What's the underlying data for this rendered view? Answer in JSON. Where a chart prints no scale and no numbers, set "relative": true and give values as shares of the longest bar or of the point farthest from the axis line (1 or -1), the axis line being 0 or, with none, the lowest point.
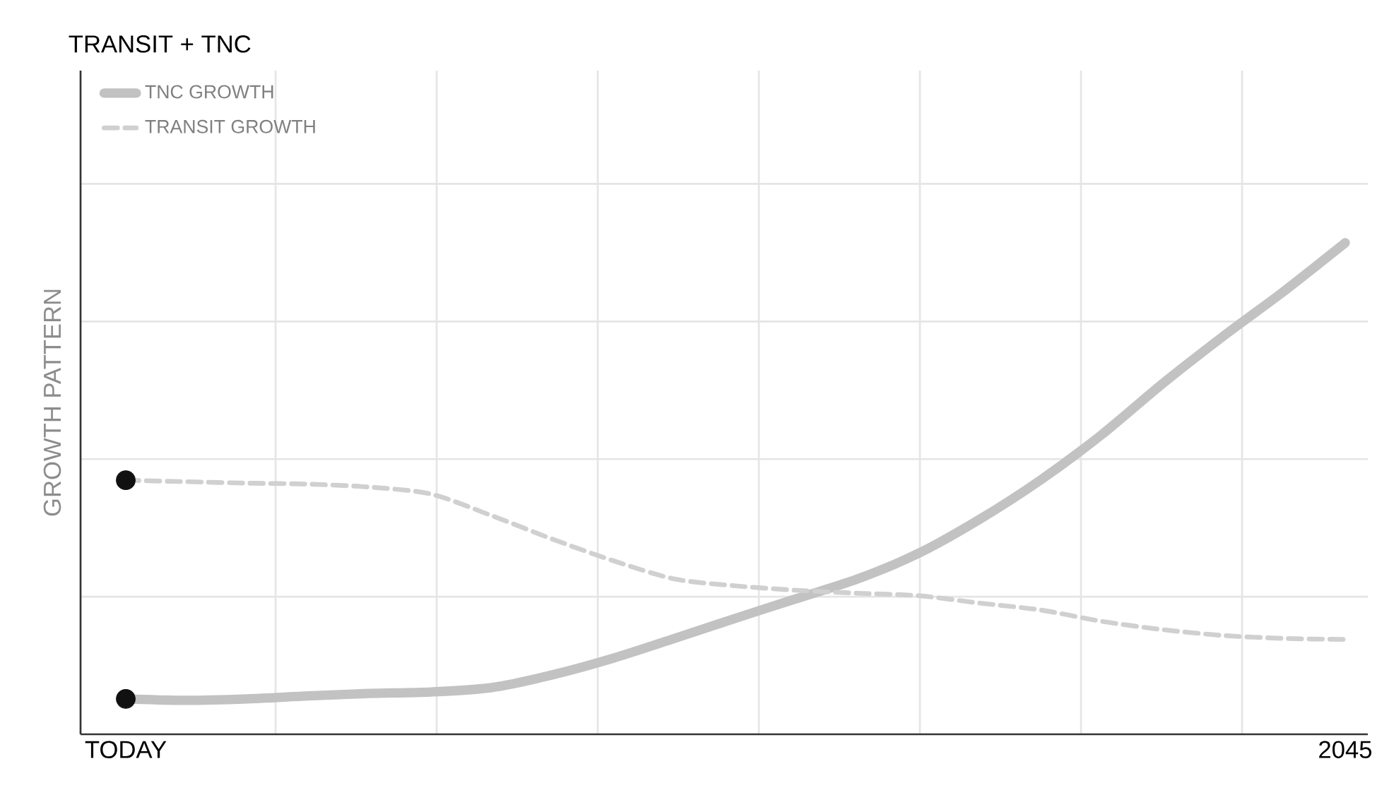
{
  "chart_data": {
    "type": "line",
    "title": "TRANSIT + TNC",
    "ylabel": "GROWTH PATTERN",
    "relative": true,
    "grid": true,
    "legend": "top left",
    "categories": [
      "TODAY",
      null,
      null,
      null,
      null,
      null,
      null,
      null,
      null,
      null,
      null,
      null,
      null,
      null,
      null,
      null,
      null,
      null,
      null,
      null,
      "2045"
    ],
    "series": [
      {
        "name": "TNC GROWTH",
        "line_style": "solid",
        "color": "#c2c2c2",
        "values": [
          0.072,
          0.069,
          0.072,
          0.078,
          0.083,
          0.086,
          0.095,
          0.121,
          0.155,
          0.195,
          0.236,
          0.276,
          0.316,
          0.368,
          0.437,
          0.517,
          0.609,
          0.713,
          0.81,
          0.902,
          1.0
        ]
      },
      {
        "name": "TRANSIT GROWTH",
        "line_style": "dashed",
        "color": "#d0d0d0",
        "values": [
          0.517,
          0.514,
          0.511,
          0.509,
          0.503,
          0.489,
          0.445,
          0.397,
          0.353,
          0.316,
          0.302,
          0.293,
          0.287,
          0.282,
          0.267,
          0.253,
          0.23,
          0.213,
          0.201,
          0.195,
          0.193
        ]
      },
      {
        "type": "scatter",
        "color": "#111111",
        "values": [
          0.072,
          null,
          null,
          null,
          null,
          null,
          null,
          null,
          null,
          null,
          null,
          null,
          null,
          null,
          null,
          null,
          null,
          null,
          null,
          null,
          null
        ]
      },
      {
        "type": "scatter",
        "color": "#111111",
        "values": [
          0.517,
          null,
          null,
          null,
          null,
          null,
          null,
          null,
          null,
          null,
          null,
          null,
          null,
          null,
          null,
          null,
          null,
          null,
          null,
          null,
          null
        ]
      }
    ]
  }
}
